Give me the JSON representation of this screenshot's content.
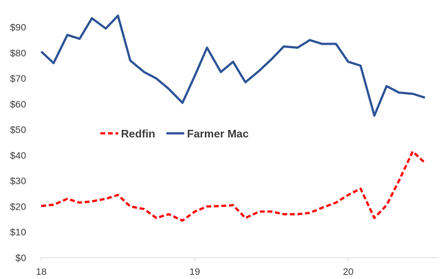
{
  "chart_data": {
    "type": "line",
    "title": "",
    "xlabel": "",
    "ylabel": "",
    "ylim": [
      0,
      95
    ],
    "yticks": [
      "$0",
      "$10",
      "$20",
      "$30",
      "$40",
      "$50",
      "$60",
      "$70",
      "$80",
      "$90"
    ],
    "ytick_values": [
      0,
      10,
      20,
      30,
      40,
      50,
      60,
      70,
      80,
      90
    ],
    "xticks": [
      "18",
      "19",
      "20"
    ],
    "xtick_values": [
      2018,
      2019,
      2020
    ],
    "xlim": [
      2018,
      2020.58
    ],
    "grid": false,
    "legend": {
      "placement": "center-left"
    },
    "series": [
      {
        "name": "Redfin",
        "style": "dashed",
        "color": "#ff0000",
        "x": [
          2018.0,
          2018.08,
          2018.17,
          2018.25,
          2018.33,
          2018.42,
          2018.5,
          2018.58,
          2018.67,
          2018.75,
          2018.83,
          2018.92,
          2019.0,
          2019.08,
          2019.17,
          2019.25,
          2019.33,
          2019.42,
          2019.5,
          2019.58,
          2019.67,
          2019.75,
          2019.83,
          2019.92,
          2020.0,
          2020.08,
          2020.17,
          2020.25,
          2020.33,
          2020.42,
          2020.5
        ],
        "values": [
          20.2,
          20.7,
          23.0,
          21.5,
          22.0,
          23.0,
          24.5,
          20.0,
          19.0,
          15.5,
          17.0,
          14.5,
          18.0,
          20.0,
          20.2,
          20.5,
          15.5,
          18.0,
          18.0,
          17.0,
          17.0,
          17.5,
          19.5,
          21.5,
          24.5,
          27.0,
          15.5,
          20.5,
          30.0,
          41.5,
          37.0
        ]
      },
      {
        "name": "Farmer Mac",
        "style": "solid",
        "color": "#2f5597",
        "x": [
          2018.0,
          2018.08,
          2018.17,
          2018.25,
          2018.33,
          2018.42,
          2018.5,
          2018.58,
          2018.67,
          2018.75,
          2018.83,
          2018.92,
          2019.0,
          2019.08,
          2019.17,
          2019.25,
          2019.33,
          2019.42,
          2019.5,
          2019.58,
          2019.67,
          2019.75,
          2019.83,
          2019.92,
          2020.0,
          2020.08,
          2020.17,
          2020.25,
          2020.33,
          2020.42,
          2020.5
        ],
        "values": [
          80.5,
          76.0,
          87.0,
          85.5,
          93.5,
          89.5,
          94.5,
          77.0,
          72.5,
          70.0,
          66.0,
          60.5,
          71.0,
          82.0,
          72.5,
          76.5,
          68.5,
          73.0,
          77.5,
          82.5,
          82.0,
          85.0,
          83.5,
          83.5,
          76.5,
          75.0,
          55.5,
          67.0,
          64.5,
          64.0,
          62.5
        ]
      }
    ]
  }
}
